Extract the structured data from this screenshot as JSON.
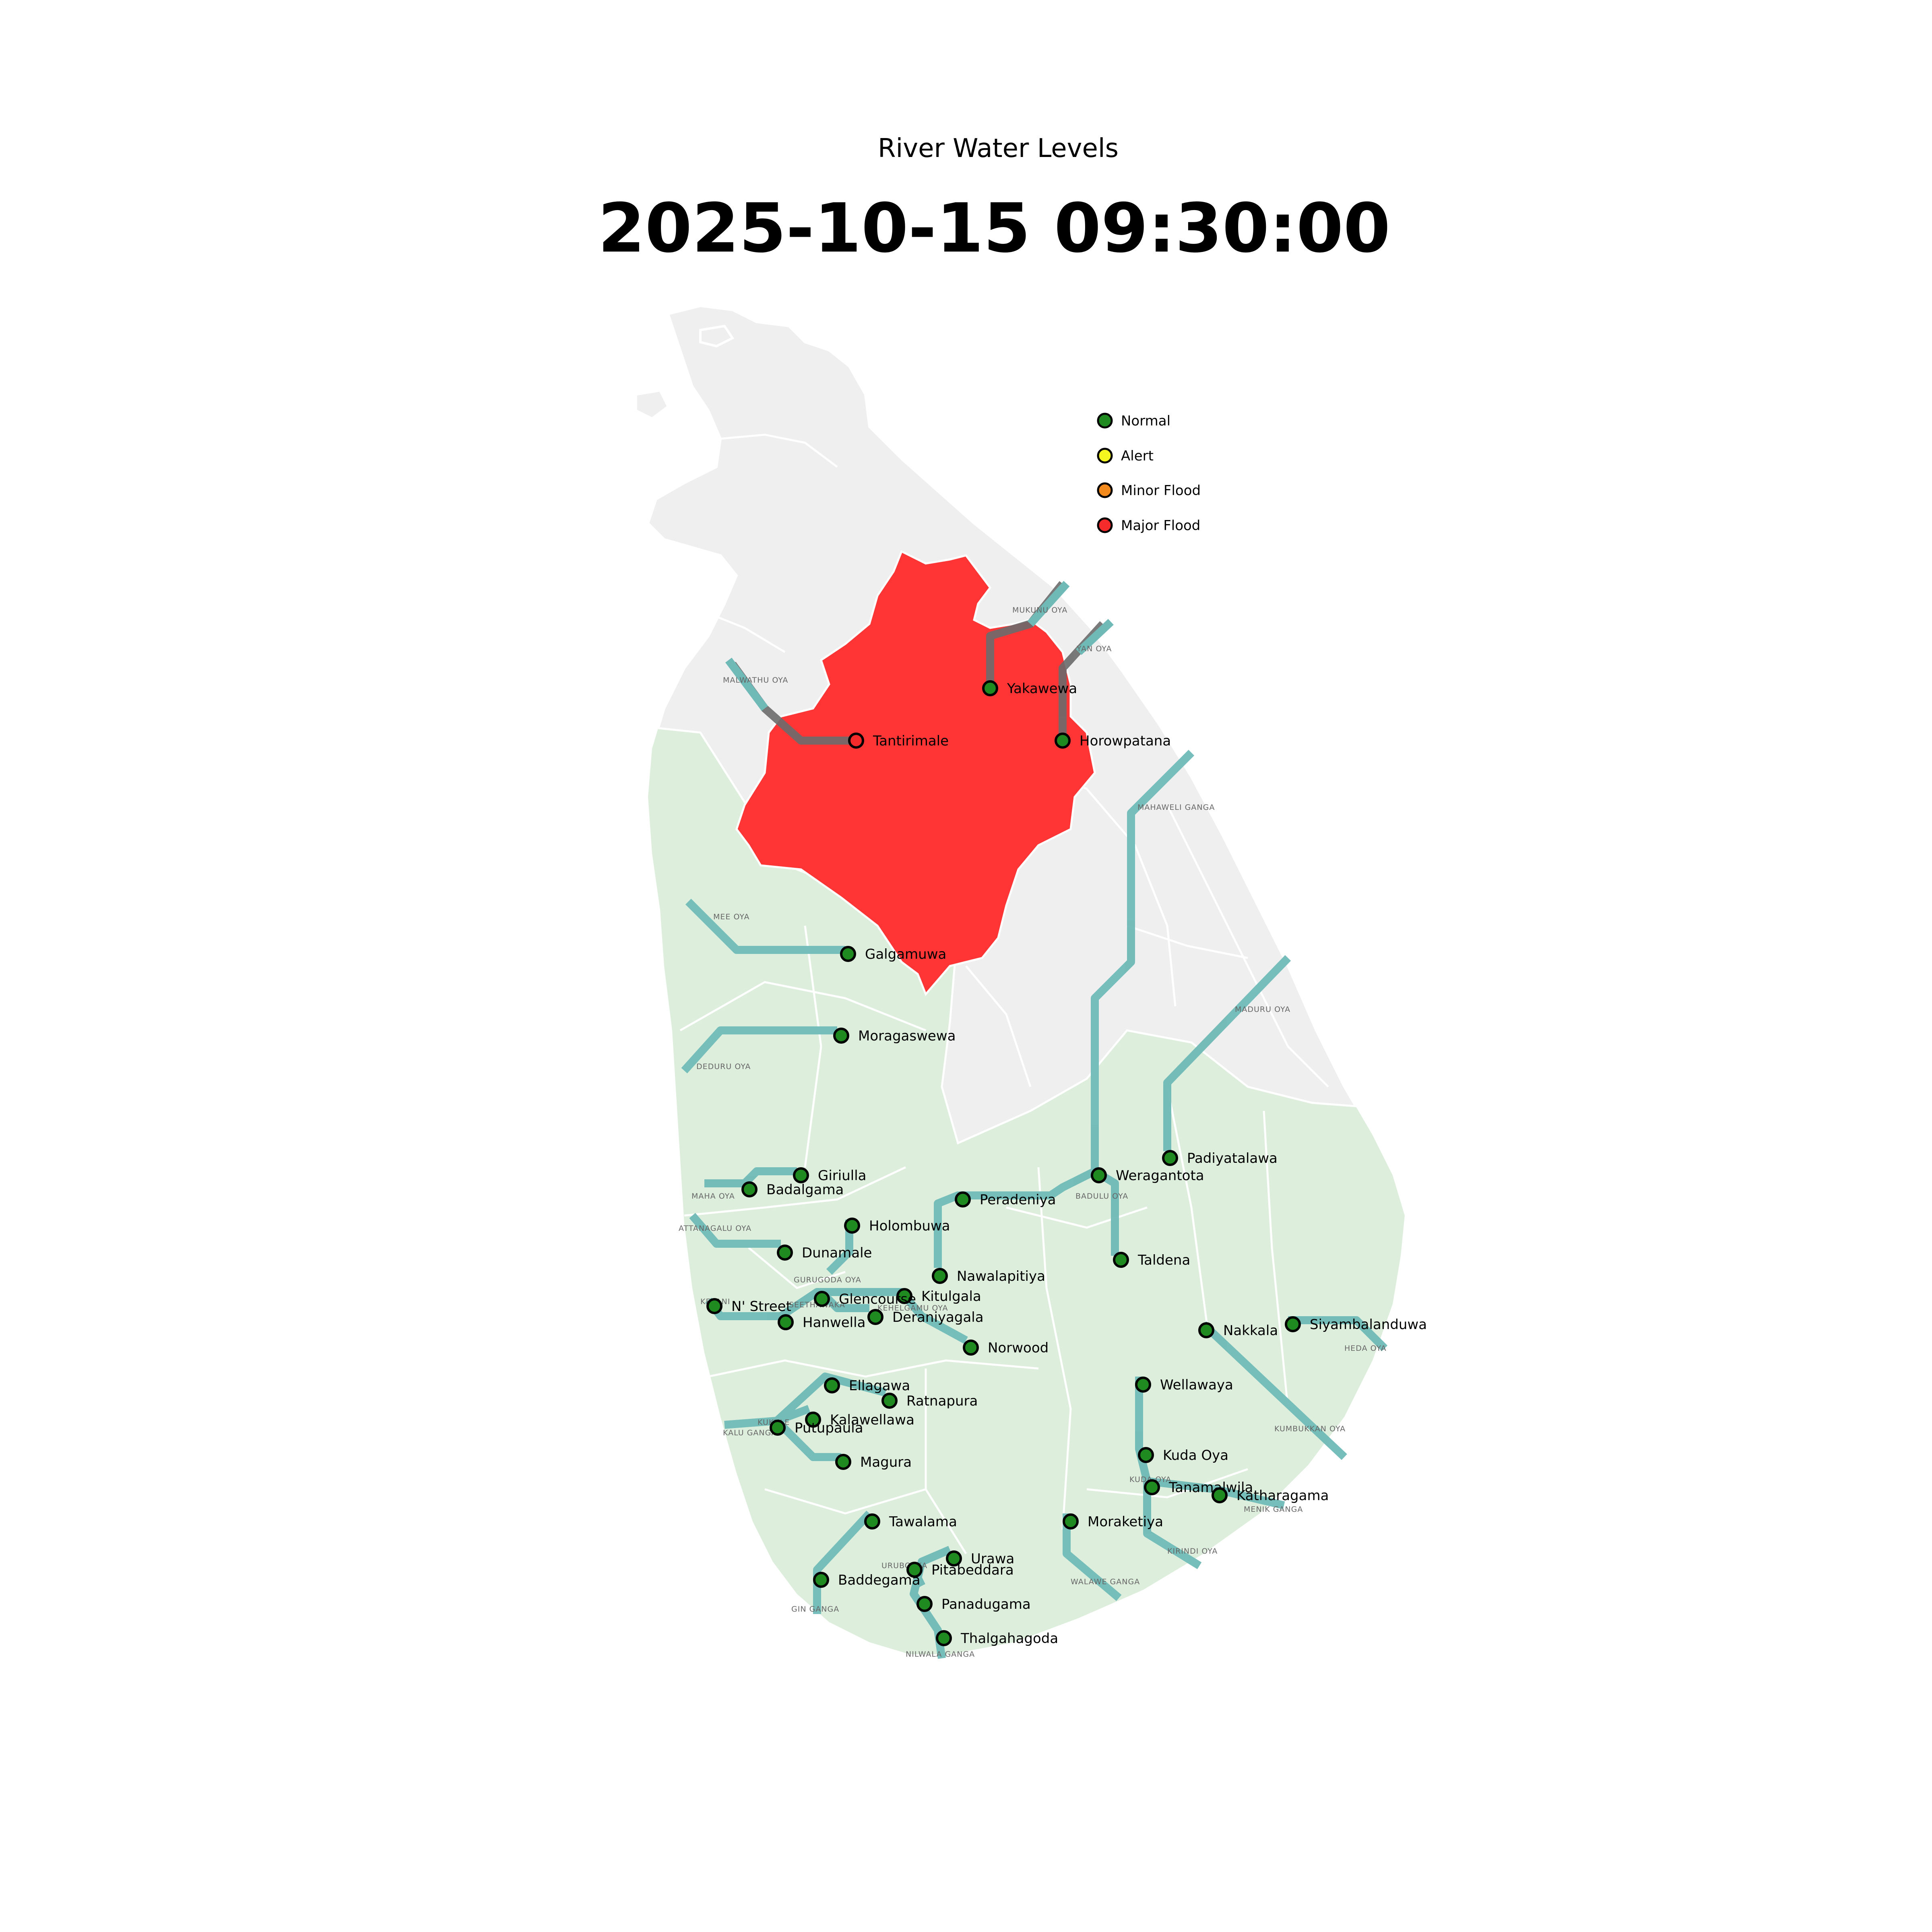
{
  "map": {
    "title": "River Water Levels",
    "timestamp": "2025-10-15 09:30:00"
  },
  "legend": [
    {
      "status": "normal",
      "label": "Normal",
      "color": "#1f8a1f"
    },
    {
      "status": "alert",
      "label": "Alert",
      "color": "#f5f51f"
    },
    {
      "status": "minor",
      "label": "Minor Flood",
      "color": "#f28a1e"
    },
    {
      "status": "major",
      "label": "Major Flood",
      "color": "#f52a2a"
    }
  ],
  "colors": {
    "island": "#efefef",
    "monitored_region": "#ddeedd",
    "flooded_region": "#ff3535",
    "river": "#6fbab7",
    "river_flooded": "#6b6b6b"
  },
  "rivers": [
    "MUKUNU OYA",
    "YAN OYA",
    "MALWATHU OYA",
    "MAHAWELI GANGA",
    "MEE OYA",
    "MADURU OYA",
    "DEDURU OYA",
    "BADULU OYA",
    "MAHA OYA",
    "ATTANAGALU OYA",
    "GURUGODA OYA",
    "KELANI",
    "SEETHAWAKA",
    "KEHELGAMU OYA",
    "HEDA OYA",
    "KUMBUKKAN OYA",
    "KUKULE",
    "KALU GANGA",
    "KUDA OYA",
    "MENIK GANGA",
    "KIRINDI OYA",
    "URUBOKKA",
    "WALAWE GANGA",
    "GIN GANGA",
    "NILWALA GANGA"
  ],
  "stations": [
    {
      "name": "Yakawewa",
      "status": "normal"
    },
    {
      "name": "Horowpatana",
      "status": "normal"
    },
    {
      "name": "Tantirimale",
      "status": "major"
    },
    {
      "name": "Galgamuwa",
      "status": "normal"
    },
    {
      "name": "Moragaswewa",
      "status": "normal"
    },
    {
      "name": "Padiyatalawa",
      "status": "normal"
    },
    {
      "name": "Weragantota",
      "status": "normal"
    },
    {
      "name": "Giriulla",
      "status": "normal"
    },
    {
      "name": "Badalgama",
      "status": "normal"
    },
    {
      "name": "Peradeniya",
      "status": "normal"
    },
    {
      "name": "Holombuwa",
      "status": "normal"
    },
    {
      "name": "Dunamale",
      "status": "normal"
    },
    {
      "name": "Taldena",
      "status": "normal"
    },
    {
      "name": "Nawalapitiya",
      "status": "normal"
    },
    {
      "name": "Kitulgala",
      "status": "normal"
    },
    {
      "name": "Glencourse",
      "status": "normal"
    },
    {
      "name": "N' Street",
      "status": "normal"
    },
    {
      "name": "Deraniyagala",
      "status": "normal"
    },
    {
      "name": "Hanwella",
      "status": "normal"
    },
    {
      "name": "Norwood",
      "status": "normal"
    },
    {
      "name": "Nakkala",
      "status": "normal"
    },
    {
      "name": "Siyambalanduwa",
      "status": "normal"
    },
    {
      "name": "Wellawaya",
      "status": "normal"
    },
    {
      "name": "Ellagawa",
      "status": "normal"
    },
    {
      "name": "Ratnapura",
      "status": "normal"
    },
    {
      "name": "Kalawellawa",
      "status": "normal"
    },
    {
      "name": "Putupaula",
      "status": "normal"
    },
    {
      "name": "Magura",
      "status": "normal"
    },
    {
      "name": "Kuda Oya",
      "status": "normal"
    },
    {
      "name": "Tanamalwila",
      "status": "normal"
    },
    {
      "name": "Katharagama",
      "status": "normal"
    },
    {
      "name": "Tawalama",
      "status": "normal"
    },
    {
      "name": "Moraketiya",
      "status": "normal"
    },
    {
      "name": "Urawa",
      "status": "normal"
    },
    {
      "name": "Pitabeddara",
      "status": "normal"
    },
    {
      "name": "Baddegama",
      "status": "normal"
    },
    {
      "name": "Panadugama",
      "status": "normal"
    },
    {
      "name": "Thalgahagoda",
      "status": "normal"
    }
  ]
}
